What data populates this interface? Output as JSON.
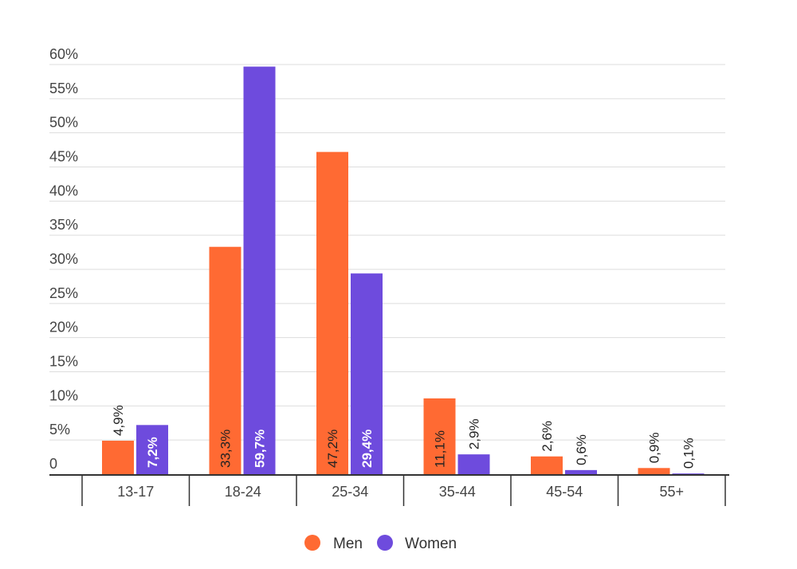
{
  "chart_data": {
    "type": "bar",
    "categories": [
      "13-17",
      "18-24",
      "25-34",
      "35-44",
      "45-54",
      "55+"
    ],
    "series": [
      {
        "name": "Men",
        "color": "#FF6A33",
        "values": [
          4.9,
          33.3,
          47.2,
          11.1,
          2.6,
          0.9
        ],
        "labels": [
          "4,9%",
          "33,3%",
          "47,2%",
          "11,1%",
          "2,6%",
          "0,9%"
        ]
      },
      {
        "name": "Women",
        "color": "#6E4BDD",
        "values": [
          7.2,
          59.7,
          29.4,
          2.9,
          0.6,
          0.1
        ],
        "labels": [
          "7,2%",
          "59,7%",
          "29,4%",
          "2,9%",
          "0,6%",
          "0,1%"
        ]
      }
    ],
    "y_ticks": [
      {
        "value": 0,
        "label": "0"
      },
      {
        "value": 5,
        "label": "5%"
      },
      {
        "value": 10,
        "label": "10%"
      },
      {
        "value": 15,
        "label": "15%"
      },
      {
        "value": 20,
        "label": "20%"
      },
      {
        "value": 25,
        "label": "25%"
      },
      {
        "value": 30,
        "label": "30%"
      },
      {
        "value": 35,
        "label": "35%"
      },
      {
        "value": 40,
        "label": "40%"
      },
      {
        "value": 45,
        "label": "45%"
      },
      {
        "value": 50,
        "label": "50%"
      },
      {
        "value": 55,
        "label": "55%"
      },
      {
        "value": 60,
        "label": "60%"
      }
    ],
    "ylim": [
      0,
      60
    ],
    "grid": true,
    "legend_position": "bottom-center",
    "title": "",
    "xlabel": "",
    "ylabel": ""
  }
}
